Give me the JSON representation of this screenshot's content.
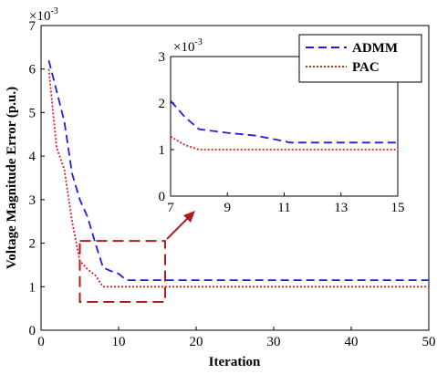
{
  "colors": {
    "admm": "#1f1fe0",
    "pac": "#e01f1f",
    "box": "#b01c1c"
  },
  "chart_data": [
    {
      "id": "main",
      "type": "line",
      "xlabel": "Iteration",
      "ylabel": "Voltage Magnitude Error (p.u.)",
      "y_multiplier": "×10",
      "y_exponent": "-3",
      "xlim": [
        0,
        50
      ],
      "ylim": [
        0,
        7
      ],
      "xticks": [
        "0",
        "10",
        "20",
        "30",
        "40",
        "50"
      ],
      "yticks": [
        "0",
        "1",
        "2",
        "3",
        "4",
        "5",
        "6",
        "7"
      ],
      "legend": {
        "placement": "top-right",
        "entries": [
          "ADMM",
          "PAC"
        ]
      },
      "series": [
        {
          "name": "ADMM",
          "style": "dashed",
          "x": [
            1,
            2,
            3,
            4,
            5,
            6,
            7,
            8,
            9,
            10,
            11,
            12,
            15,
            20,
            30,
            40,
            50
          ],
          "y": [
            6.2,
            5.5,
            4.8,
            3.6,
            3.0,
            2.6,
            2.0,
            1.44,
            1.36,
            1.3,
            1.15,
            1.15,
            1.15,
            1.15,
            1.15,
            1.15,
            1.15
          ]
        },
        {
          "name": "PAC",
          "style": "dotted",
          "x": [
            1,
            2,
            3,
            4,
            5,
            6,
            7,
            8,
            9,
            10,
            15,
            20,
            30,
            40,
            50
          ],
          "y": [
            6.0,
            4.2,
            3.7,
            2.5,
            1.6,
            1.4,
            1.26,
            1.0,
            1.0,
            1.0,
            1.0,
            1.0,
            1.0,
            1.0,
            1.0
          ]
        }
      ],
      "annotations": [
        {
          "type": "zoom-box",
          "x_range": [
            5,
            16
          ],
          "y_range": [
            0.65,
            2.05
          ],
          "style": "dashed"
        }
      ]
    },
    {
      "id": "inset",
      "type": "line",
      "y_multiplier": "×10",
      "y_exponent": "-3",
      "xlim": [
        7,
        15
      ],
      "ylim": [
        0,
        3
      ],
      "xticks": [
        "7",
        "9",
        "11",
        "13",
        "15"
      ],
      "yticks": [
        "0",
        "1",
        "2",
        "3"
      ],
      "series": [
        {
          "name": "ADMM",
          "style": "dashed",
          "x": [
            7,
            7.5,
            8,
            9,
            10,
            11,
            11.2,
            12,
            13,
            14,
            15
          ],
          "y": [
            2.05,
            1.7,
            1.44,
            1.36,
            1.3,
            1.18,
            1.15,
            1.15,
            1.15,
            1.15,
            1.15
          ]
        },
        {
          "name": "PAC",
          "style": "dotted",
          "x": [
            7,
            7.5,
            8,
            9,
            10,
            11,
            12,
            13,
            14,
            15
          ],
          "y": [
            1.28,
            1.1,
            1.0,
            1.0,
            1.0,
            1.0,
            1.0,
            1.0,
            1.0,
            1.0
          ]
        }
      ]
    }
  ]
}
